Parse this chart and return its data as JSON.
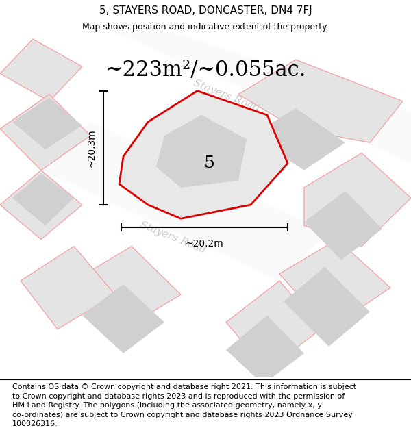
{
  "title": "5, STAYERS ROAD, DONCASTER, DN4 7FJ",
  "subtitle": "Map shows position and indicative extent of the property.",
  "area_text": "~223m²/~0.055ac.",
  "label_number": "5",
  "dim_horizontal": "~20.2m",
  "dim_vertical": "~20.3m",
  "road_label_1": "Stayers Road",
  "road_label_2": "Stayers Road",
  "footer_text": "Contains OS data © Crown copyright and database right 2021. This information is subject\nto Crown copyright and database rights 2023 and is reproduced with the permission of\nHM Land Registry. The polygons (including the associated geometry, namely x, y\nco-ordinates) are subject to Crown copyright and database rights 2023 Ordnance Survey\n100026316.",
  "bg_color": "#ffffff",
  "map_bg": "#f0f0f0",
  "title_fontsize": 11,
  "subtitle_fontsize": 9,
  "area_fontsize": 22,
  "label_fontsize": 18,
  "dim_fontsize": 10,
  "footer_fontsize": 8,
  "road_label_fontsize": 11
}
